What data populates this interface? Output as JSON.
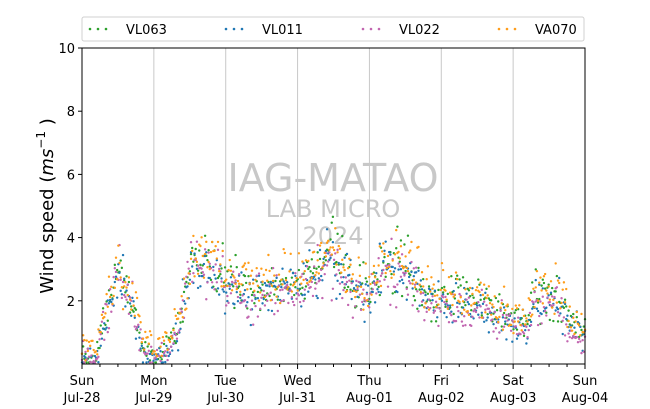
{
  "chart_data": {
    "type": "scatter",
    "ylabel": "Wind speed (ms⁻¹ )",
    "ylabel_parts": {
      "pre": "Wind speed (",
      "ital": "ms",
      "sup": "−1",
      "post": " )"
    },
    "ylim": [
      0,
      10
    ],
    "y_ticks": [
      "2",
      "4",
      "6",
      "8",
      "10"
    ],
    "xlim_days": [
      0,
      7
    ],
    "x_ticks": [
      {
        "day": "Sun",
        "date": "Jul-28"
      },
      {
        "day": "Mon",
        "date": "Jul-29"
      },
      {
        "day": "Tue",
        "date": "Jul-30"
      },
      {
        "day": "Wed",
        "date": "Jul-31"
      },
      {
        "day": "Thu",
        "date": "Aug-01"
      },
      {
        "day": "Fri",
        "date": "Aug-02"
      },
      {
        "day": "Sat",
        "date": "Aug-03"
      },
      {
        "day": "Sun",
        "date": "Aug-04"
      }
    ],
    "grid": "x-major",
    "legend_position": "top",
    "watermark": {
      "line1": "IAG-MATAO",
      "line2": "LAB MICRO",
      "line3": "2024"
    },
    "series": [
      {
        "name": "VL063",
        "color": "#2ca02c",
        "profile": [
          [
            0.0,
            0.2
          ],
          [
            0.2,
            0.3
          ],
          [
            0.35,
            1.8
          ],
          [
            0.5,
            3.0
          ],
          [
            0.7,
            2.0
          ],
          [
            0.85,
            0.5
          ],
          [
            1.0,
            0.3
          ],
          [
            1.2,
            0.5
          ],
          [
            1.35,
            1.3
          ],
          [
            1.5,
            3.0
          ],
          [
            1.7,
            3.4
          ],
          [
            2.0,
            2.8
          ],
          [
            2.3,
            2.2
          ],
          [
            2.6,
            2.3
          ],
          [
            3.0,
            2.6
          ],
          [
            3.3,
            3.0
          ],
          [
            3.5,
            3.6
          ],
          [
            3.8,
            2.4
          ],
          [
            4.0,
            2.3
          ],
          [
            4.2,
            3.4
          ],
          [
            4.5,
            3.0
          ],
          [
            4.8,
            2.3
          ],
          [
            5.0,
            2.0
          ],
          [
            5.2,
            2.1
          ],
          [
            5.5,
            1.9
          ],
          [
            5.8,
            1.7
          ],
          [
            6.0,
            1.4
          ],
          [
            6.2,
            1.3
          ],
          [
            6.3,
            2.1
          ],
          [
            6.6,
            2.2
          ],
          [
            6.8,
            1.3
          ],
          [
            7.0,
            0.9
          ]
        ]
      },
      {
        "name": "VL011",
        "color": "#1f77b4",
        "profile": [
          [
            0.0,
            0.2
          ],
          [
            0.2,
            0.2
          ],
          [
            0.35,
            1.6
          ],
          [
            0.5,
            2.8
          ],
          [
            0.7,
            1.8
          ],
          [
            0.85,
            0.3
          ],
          [
            1.0,
            0.2
          ],
          [
            1.2,
            0.3
          ],
          [
            1.35,
            1.2
          ],
          [
            1.5,
            2.9
          ],
          [
            1.7,
            3.2
          ],
          [
            2.0,
            2.6
          ],
          [
            2.3,
            2.1
          ],
          [
            2.6,
            2.3
          ],
          [
            3.0,
            2.5
          ],
          [
            3.3,
            2.9
          ],
          [
            3.5,
            3.4
          ],
          [
            3.8,
            2.2
          ],
          [
            4.0,
            2.1
          ],
          [
            4.2,
            3.2
          ],
          [
            4.5,
            2.8
          ],
          [
            4.8,
            2.2
          ],
          [
            5.0,
            1.8
          ],
          [
            5.2,
            2.0
          ],
          [
            5.5,
            1.8
          ],
          [
            5.8,
            1.6
          ],
          [
            6.0,
            1.2
          ],
          [
            6.2,
            1.2
          ],
          [
            6.3,
            2.0
          ],
          [
            6.6,
            2.0
          ],
          [
            6.8,
            1.2
          ],
          [
            7.0,
            0.8
          ]
        ]
      },
      {
        "name": "VL022",
        "color": "#c266b0",
        "profile": [
          [
            0.0,
            0.3
          ],
          [
            0.2,
            0.3
          ],
          [
            0.35,
            1.7
          ],
          [
            0.5,
            2.9
          ],
          [
            0.7,
            1.9
          ],
          [
            0.85,
            0.4
          ],
          [
            1.0,
            0.3
          ],
          [
            1.2,
            0.4
          ],
          [
            1.35,
            1.2
          ],
          [
            1.5,
            2.8
          ],
          [
            1.7,
            3.0
          ],
          [
            2.0,
            2.5
          ],
          [
            2.3,
            2.0
          ],
          [
            2.6,
            2.2
          ],
          [
            3.0,
            2.4
          ],
          [
            3.3,
            2.8
          ],
          [
            3.5,
            3.3
          ],
          [
            3.8,
            2.1
          ],
          [
            4.0,
            2.0
          ],
          [
            4.2,
            3.0
          ],
          [
            4.5,
            2.7
          ],
          [
            4.8,
            2.1
          ],
          [
            5.0,
            1.7
          ],
          [
            5.2,
            1.9
          ],
          [
            5.5,
            1.7
          ],
          [
            5.8,
            1.5
          ],
          [
            6.0,
            1.1
          ],
          [
            6.2,
            1.1
          ],
          [
            6.3,
            1.9
          ],
          [
            6.6,
            1.9
          ],
          [
            6.8,
            1.0
          ],
          [
            7.0,
            0.5
          ]
        ]
      },
      {
        "name": "VA070",
        "color": "#ff9d1a",
        "profile": [
          [
            0.0,
            0.4
          ],
          [
            0.2,
            0.5
          ],
          [
            0.35,
            2.0
          ],
          [
            0.5,
            3.1
          ],
          [
            0.7,
            2.2
          ],
          [
            0.85,
            0.7
          ],
          [
            1.0,
            0.5
          ],
          [
            1.2,
            0.6
          ],
          [
            1.35,
            1.5
          ],
          [
            1.5,
            3.2
          ],
          [
            1.7,
            3.6
          ],
          [
            2.0,
            3.0
          ],
          [
            2.3,
            2.5
          ],
          [
            2.6,
            2.6
          ],
          [
            3.0,
            2.8
          ],
          [
            3.3,
            3.2
          ],
          [
            3.5,
            3.8
          ],
          [
            3.8,
            2.6
          ],
          [
            4.0,
            2.5
          ],
          [
            4.2,
            3.5
          ],
          [
            4.5,
            3.1
          ],
          [
            4.8,
            2.5
          ],
          [
            5.0,
            2.2
          ],
          [
            5.2,
            2.3
          ],
          [
            5.5,
            2.0
          ],
          [
            5.8,
            1.8
          ],
          [
            6.0,
            1.5
          ],
          [
            6.2,
            1.4
          ],
          [
            6.3,
            2.2
          ],
          [
            6.6,
            2.4
          ],
          [
            6.8,
            1.4
          ],
          [
            7.0,
            1.0
          ]
        ]
      }
    ]
  }
}
